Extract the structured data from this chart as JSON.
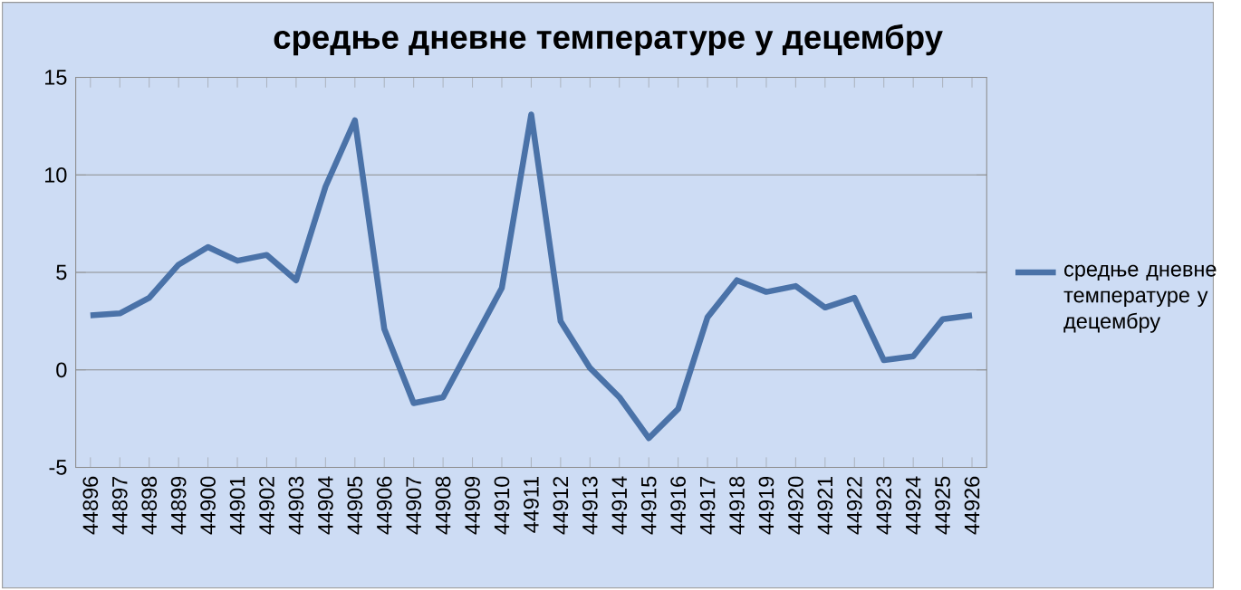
{
  "chart_data": {
    "type": "line",
    "title": "средње дневне температуре у децембру",
    "categories": [
      "44896",
      "44897",
      "44898",
      "44899",
      "44900",
      "44901",
      "44902",
      "44903",
      "44904",
      "44905",
      "44906",
      "44907",
      "44908",
      "44909",
      "44910",
      "44911",
      "44912",
      "44913",
      "44914",
      "44915",
      "44916",
      "44917",
      "44918",
      "44919",
      "44920",
      "44921",
      "44922",
      "44923",
      "44924",
      "44925",
      "44926"
    ],
    "series": [
      {
        "name": "средње дневне температуре у децембру",
        "color": "#4a72a8",
        "values": [
          2.8,
          2.9,
          3.7,
          5.4,
          6.3,
          5.6,
          5.9,
          4.6,
          9.4,
          12.8,
          2.1,
          -1.7,
          -1.4,
          1.4,
          4.2,
          13.1,
          2.5,
          0.1,
          -1.4,
          -3.5,
          -2.0,
          2.7,
          4.6,
          4.0,
          4.3,
          3.2,
          3.7,
          0.5,
          0.7,
          2.6,
          2.8
        ]
      }
    ],
    "ylim": [
      -5,
      15
    ],
    "yticks": [
      -5,
      0,
      5,
      10,
      15
    ],
    "grid": "y",
    "legend": "right",
    "marker": "none",
    "line_style": "solid"
  }
}
